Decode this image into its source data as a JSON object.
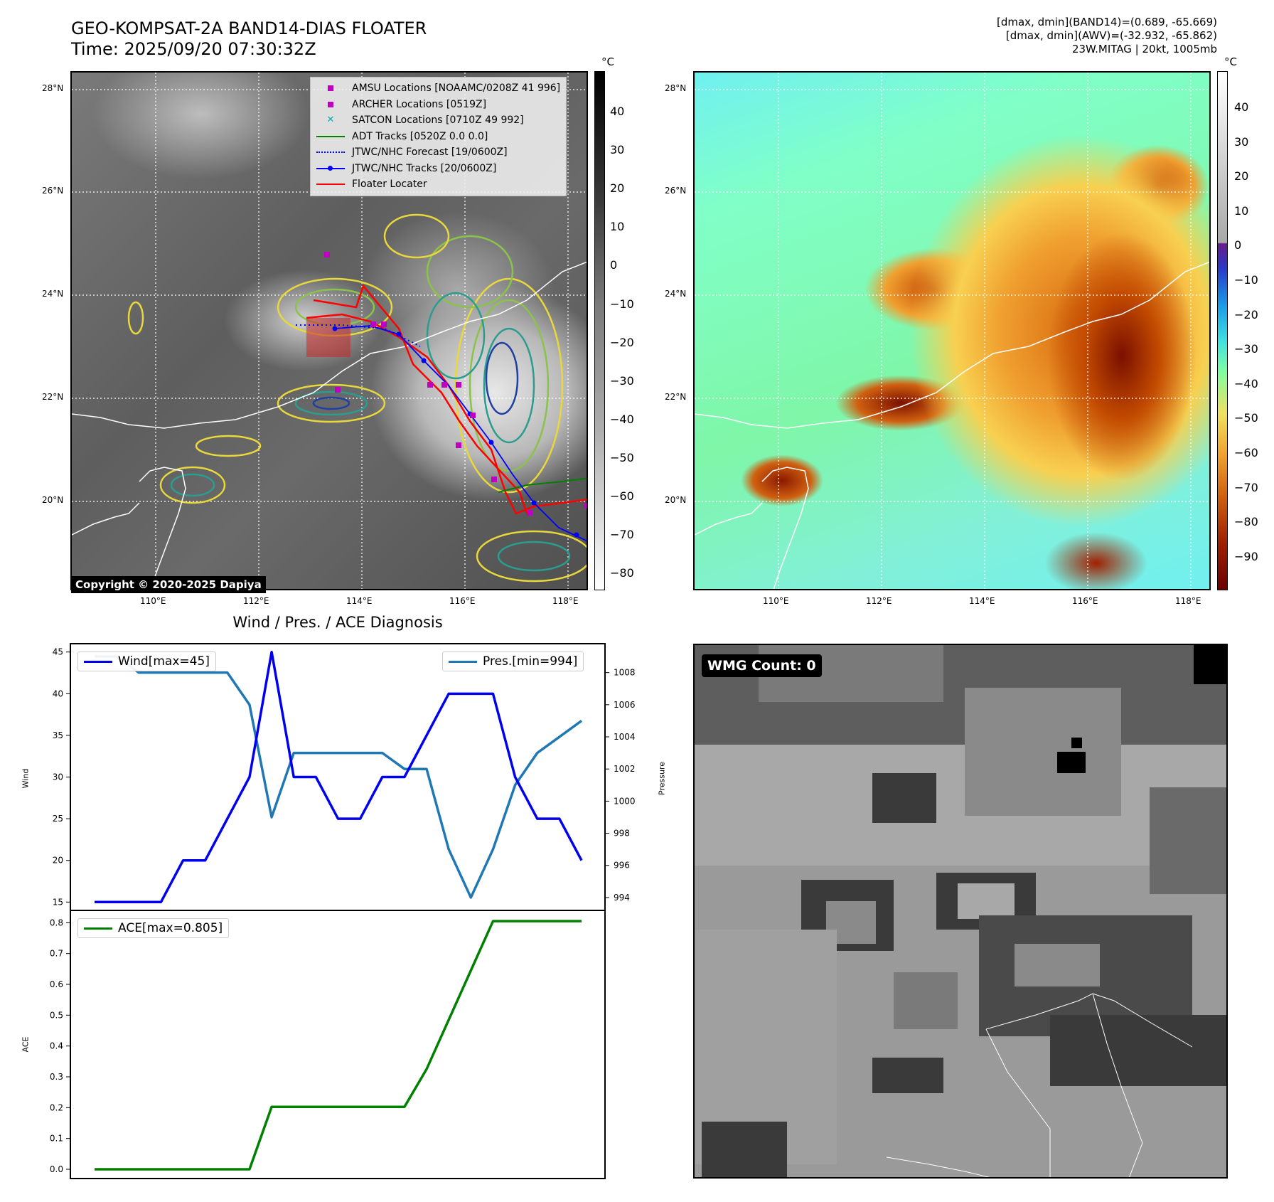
{
  "header": {
    "title_line1": "GEO-KOMPSAT-2A BAND14-DIAS FLOATER",
    "title_line2": "Time: 2025/09/20 07:30:32Z",
    "info_line1": "[dmax, dmin](BAND14)=(0.689, -65.669)",
    "info_line2": "[dmax, dmin](AWV)=(-32.932, -65.862)",
    "info_line3": "23W.MITAG | 20kt, 1005mb"
  },
  "map": {
    "lat_ticks": [
      "28°N",
      "26°N",
      "24°N",
      "22°N",
      "20°N"
    ],
    "lon_ticks": [
      "110°E",
      "112°E",
      "114°E",
      "116°E",
      "118°E"
    ],
    "copyright": "Copyright © 2020-2025 Dapiya",
    "legend": [
      {
        "label": "AMSU Locations [NOAAMC/0208Z 41 996]",
        "color": "#c000c0",
        "icon": "square-marker"
      },
      {
        "label": "ARCHER Locations [0519Z]",
        "color": "#c000c0",
        "icon": "square-marker"
      },
      {
        "label": "SATCON Locations [0710Z 49 992]",
        "color": "#00b0b0",
        "icon": "x-marker"
      },
      {
        "label": "ADT Tracks [0520Z 0.0 0.0]",
        "color": "#008000",
        "icon": "solid-line"
      },
      {
        "label": "JTWC/NHC Forecast [19/0600Z]",
        "color": "#0000ff",
        "icon": "dotted-line"
      },
      {
        "label": "JTWC/NHC Tracks [20/0600Z]",
        "color": "#0000ff",
        "icon": "line-dot"
      },
      {
        "label": "Floater Locater",
        "color": "#ff0000",
        "icon": "solid-line"
      }
    ]
  },
  "colorbar_gray": {
    "unit": "°C",
    "ticks": [
      "40",
      "30",
      "20",
      "10",
      "0",
      "−10",
      "−20",
      "−30",
      "−40",
      "−50",
      "−60",
      "−70",
      "−80"
    ]
  },
  "colorbar_color": {
    "unit": "°C",
    "ticks": [
      "40",
      "30",
      "20",
      "10",
      "0",
      "−10",
      "−20",
      "−30",
      "−40",
      "−50",
      "−60",
      "−70",
      "−80",
      "−90"
    ]
  },
  "diagnosis_title": "Wind / Pres. / ACE Diagnosis",
  "wmg_label": "WMG Count: 0",
  "chart_data": [
    {
      "type": "line",
      "title": "Wind / Pres. / ACE Diagnosis",
      "ylabel": "Wind",
      "y2label": "Pressure",
      "ylim": [
        14,
        46
      ],
      "y2lim": [
        993.2,
        1009.8
      ],
      "yticks": [
        15,
        20,
        25,
        30,
        35,
        40,
        45
      ],
      "y2ticks": [
        994,
        996,
        998,
        1000,
        1002,
        1004,
        1006,
        1008
      ],
      "series": [
        {
          "name": "Wind[max=45]",
          "axis": "left",
          "color": "#0000ee",
          "values": [
            15,
            15,
            15,
            15,
            20,
            20,
            25,
            30,
            45,
            30,
            30,
            25,
            25,
            30,
            30,
            35,
            40,
            40,
            40,
            30,
            25,
            25,
            20
          ]
        },
        {
          "name": "Pres.[min=994]",
          "axis": "right",
          "color": "#1f77b4",
          "values": [
            1009,
            1009,
            1008,
            1008,
            1008,
            1008,
            1008,
            1006,
            999,
            1003,
            1003,
            1003,
            1003,
            1003,
            1002,
            1002,
            997,
            994,
            997,
            1001,
            1003,
            1004,
            1005
          ]
        }
      ]
    },
    {
      "type": "line",
      "ylabel": "ACE",
      "ylim": [
        -0.03,
        0.84
      ],
      "yticks": [
        0.0,
        0.1,
        0.2,
        0.3,
        0.4,
        0.5,
        0.6,
        0.7,
        0.8
      ],
      "series": [
        {
          "name": "ACE[max=0.805]",
          "color": "#008000",
          "values": [
            0,
            0,
            0,
            0,
            0,
            0,
            0,
            0,
            0.2025,
            0.2025,
            0.2025,
            0.2025,
            0.2025,
            0.2025,
            0.2025,
            0.325,
            0.485,
            0.645,
            0.805,
            0.805,
            0.805,
            0.805,
            0.805
          ]
        }
      ]
    }
  ]
}
